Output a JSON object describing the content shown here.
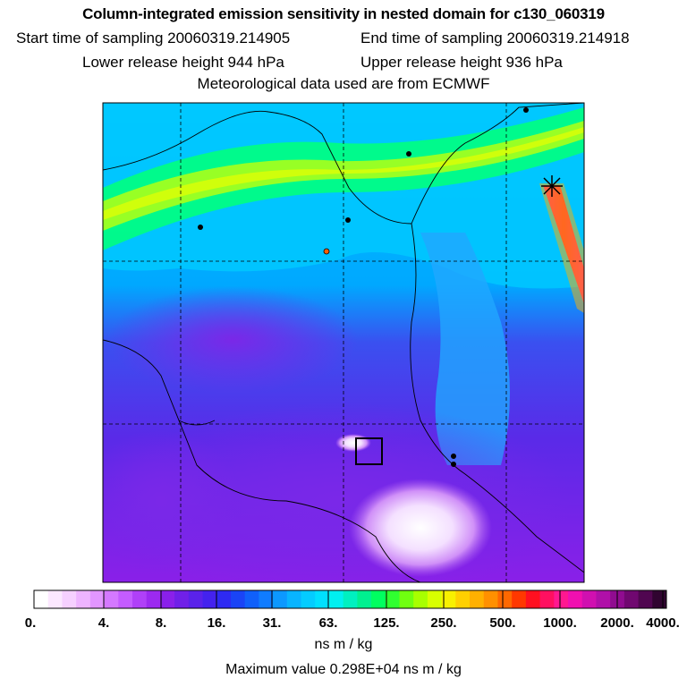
{
  "title": "Column-integrated emission sensitivity in nested domain for c130_060319",
  "start_label": "Start time of sampling 20060319.214905",
  "end_label": "End time of sampling 20060319.214918",
  "lower_label": "Lower release height  944 hPa",
  "upper_label": "Upper release height  936 hPa",
  "met_label": "Meteorological data used are from ECMWF",
  "colorbar": {
    "ticks": [
      "0.",
      "4.",
      "8.",
      "16.",
      "31.",
      "63.",
      "125.",
      "250.",
      "500.",
      "1000.",
      "2000.",
      "4000."
    ],
    "units": "ns m / kg"
  },
  "max_label": "Maximum value  0.298E+04 ns m / kg",
  "colors": {
    "low": "#ffffff",
    "violet": "#a020f0",
    "blue": "#3030ff",
    "cyan": "#00e8ff",
    "green": "#00ff40",
    "yellow": "#f0ff00",
    "orange": "#ff8000",
    "red": "#ff0000",
    "magenta": "#ff1090",
    "dark": "#300030"
  }
}
